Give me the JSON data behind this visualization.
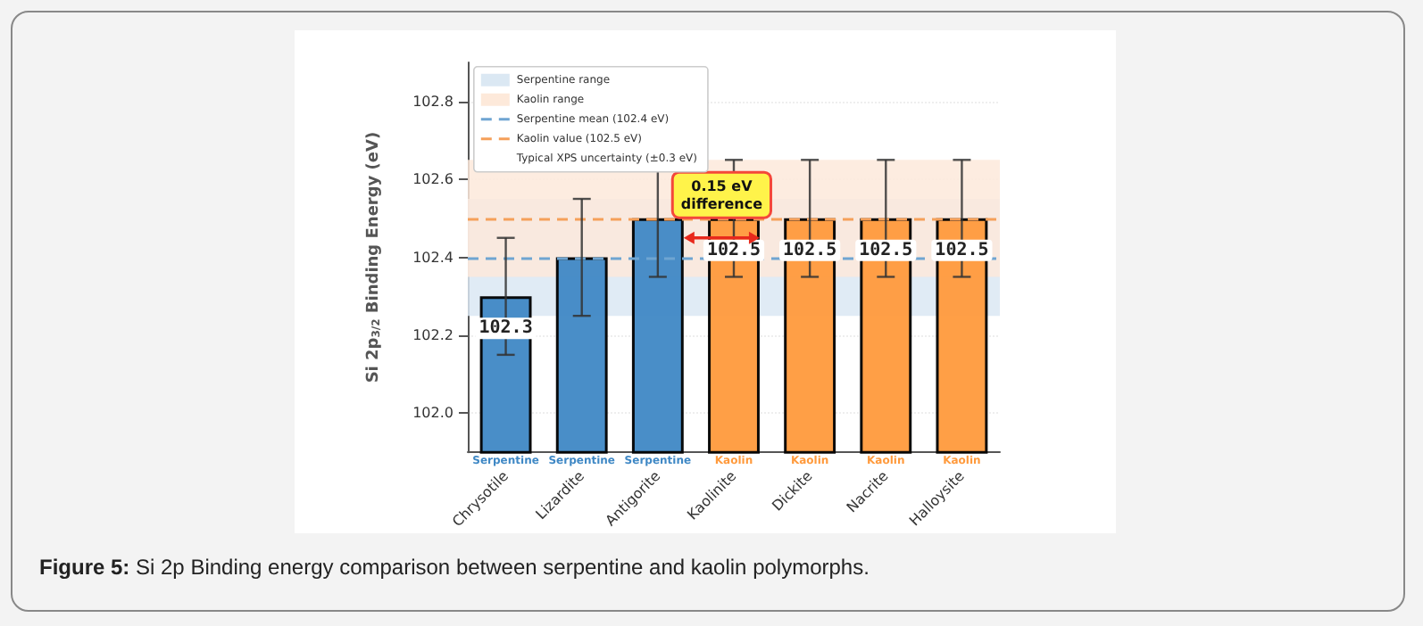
{
  "chart_data": {
    "type": "bar",
    "ylabel": "Si 2p$_{3/2}$ Binding Energy (eV)",
    "categories": [
      "Chrysotile",
      "Lizardite",
      "Antigorite",
      "Kaolinite",
      "Dickite",
      "Nacrite",
      "Halloysite"
    ],
    "series": [
      {
        "name": "Serpentine",
        "color": "#3f88c5",
        "values": [
          102.3,
          102.4,
          102.5,
          null,
          null,
          null,
          null
        ],
        "errors": [
          0.15,
          0.15,
          0.15,
          null,
          null,
          null,
          null
        ],
        "value_labels": [
          "102.3",
          null,
          null,
          null,
          null,
          null,
          null
        ]
      },
      {
        "name": "Kaolin",
        "color": "#ff9a3c",
        "values": [
          null,
          null,
          null,
          102.5,
          102.5,
          102.5,
          102.5
        ],
        "errors": [
          null,
          null,
          null,
          0.15,
          0.15,
          0.15,
          0.15
        ],
        "value_labels": [
          null,
          null,
          null,
          "102.5",
          "102.5",
          "102.5",
          "102.5"
        ]
      }
    ],
    "ylim": [
      101.9,
      102.9
    ],
    "yticks": [
      {
        "value": 102.0,
        "label": "102.0"
      },
      {
        "value": 102.2,
        "label": "102.2"
      },
      {
        "value": 102.4,
        "label": "102.4"
      },
      {
        "value": 102.6,
        "label": "102.6"
      },
      {
        "value": 102.8,
        "label": "102.8"
      }
    ],
    "bands": [
      {
        "axis": "y",
        "from": 102.25,
        "to": 102.55,
        "label": "Serpentine range",
        "color": "#dbe8f3"
      },
      {
        "axis": "y",
        "from": 102.35,
        "to": 102.65,
        "label": "Kaolin range",
        "color": "#fde9da"
      }
    ],
    "ref_lines": [
      {
        "axis": "y",
        "value": 102.4,
        "label": "Serpentine mean (102.4 eV)",
        "color": "#6fa5d2",
        "line_style": "dashed"
      },
      {
        "axis": "y",
        "value": 102.5,
        "label": "Kaolin value (102.5 eV)",
        "color": "#f5a05a",
        "line_style": "dashed"
      }
    ],
    "annotations": [
      "Typical XPS uncertainty (±0.3 eV)",
      {
        "text": "0.15 eV difference",
        "x": "Kaolinite",
        "y": 102.45
      },
      "Figure 5: Si 2p Binding energy comparison between serpentine and kaolin polymorphs."
    ],
    "grid": "y",
    "legend": "top left"
  }
}
